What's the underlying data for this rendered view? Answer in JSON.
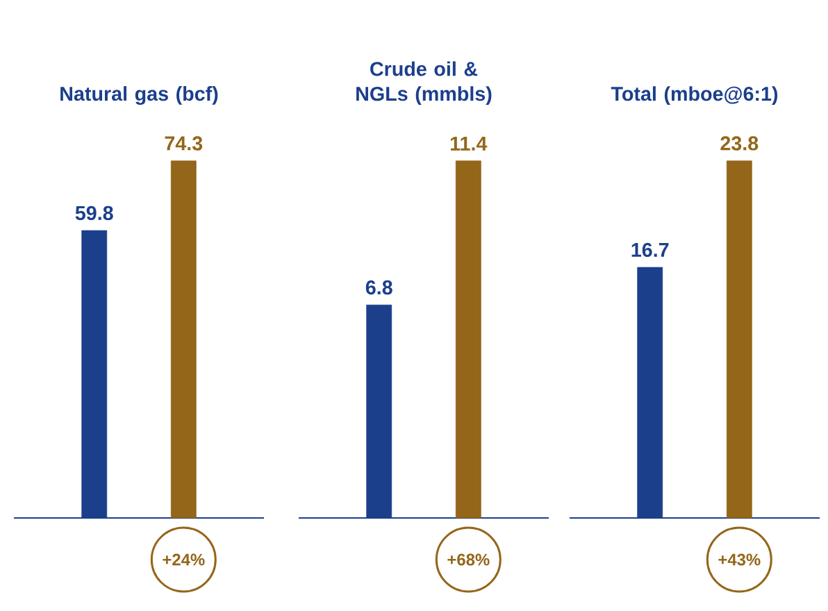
{
  "chart_data": [
    {
      "type": "bar",
      "title": "Natural gas (bcf)",
      "categories": [
        null,
        null
      ],
      "values": [
        59.8,
        74.3
      ],
      "colors": [
        "#1c3f8c",
        "#94661a"
      ],
      "data_labels": true,
      "annotations": [
        "+24%"
      ]
    },
    {
      "type": "bar",
      "title": "Crude oil & NGLs (mmbls)",
      "categories": [
        null,
        null
      ],
      "values": [
        6.8,
        11.4
      ],
      "colors": [
        "#1c3f8c",
        "#94661a"
      ],
      "data_labels": true,
      "annotations": [
        "+68%"
      ]
    },
    {
      "type": "bar",
      "title": "Total (mboe@6:1)",
      "categories": [
        null,
        null
      ],
      "values": [
        16.7,
        23.8
      ],
      "colors": [
        "#1c3f8c",
        "#94661a"
      ],
      "data_labels": true,
      "annotations": [
        "+43%"
      ]
    }
  ]
}
